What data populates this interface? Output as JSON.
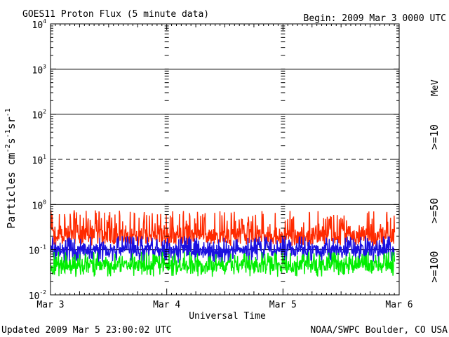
{
  "header": {
    "title": "GOES11 Proton Flux (5 minute data)",
    "begin": "Begin: 2009 Mar 3 0000 UTC"
  },
  "footer": {
    "updated": "Updated 2009 Mar  5 23:00:02 UTC",
    "credit": "NOAA/SWPC Boulder, CO USA"
  },
  "chart_data": {
    "type": "line",
    "title": "GOES11 Proton Flux (5 minute data)",
    "xlabel": "Universal Time",
    "ylabel": "Particles cm",
    "ylabel_parts": [
      {
        "text": "Particles cm",
        "sup": false
      },
      {
        "text": "-2",
        "sup": true
      },
      {
        "text": "s",
        "sup": false
      },
      {
        "text": "-1",
        "sup": true
      },
      {
        "text": "sr",
        "sup": false
      },
      {
        "text": "-1",
        "sup": true
      }
    ],
    "y_scale": "log",
    "ylim": [
      0.01,
      10000
    ],
    "y_ticks": [
      {
        "value": 0.01,
        "mant": "10",
        "exp": "-2"
      },
      {
        "value": 0.1,
        "mant": "10",
        "exp": "-1"
      },
      {
        "value": 1,
        "mant": "10",
        "exp": "0"
      },
      {
        "value": 10,
        "mant": "10",
        "exp": "1"
      },
      {
        "value": 100,
        "mant": "10",
        "exp": "2"
      },
      {
        "value": 1000,
        "mant": "10",
        "exp": "3"
      },
      {
        "value": 10000,
        "mant": "10",
        "exp": "4"
      }
    ],
    "x_ticks": [
      {
        "day": 0,
        "label": "Mar 3"
      },
      {
        "day": 1,
        "label": "Mar 4"
      },
      {
        "day": 2,
        "label": "Mar 5"
      },
      {
        "day": 3,
        "label": "Mar 6"
      }
    ],
    "xlim_days": [
      0,
      3
    ],
    "data_end_day": 2.96,
    "threshold_lines": [
      {
        "value": 1000,
        "style": "solid"
      },
      {
        "value": 100,
        "style": "solid"
      },
      {
        "value": 10,
        "style": "dashed"
      },
      {
        "value": 1,
        "style": "solid"
      },
      {
        "value": 0.1,
        "style": "solid"
      }
    ],
    "legend": {
      "placement": "right",
      "unit": "MeV"
    },
    "series": [
      {
        "name": ">=10",
        "color": "#ff2a00",
        "typical": 0.2,
        "min": 0.12,
        "max": 0.75
      },
      {
        "name": ">=50",
        "color": "#1a10e0",
        "typical": 0.095,
        "min": 0.05,
        "max": 0.2
      },
      {
        "name": ">=100",
        "color": "#00ee00",
        "typical": 0.045,
        "min": 0.025,
        "max": 0.09
      }
    ]
  }
}
